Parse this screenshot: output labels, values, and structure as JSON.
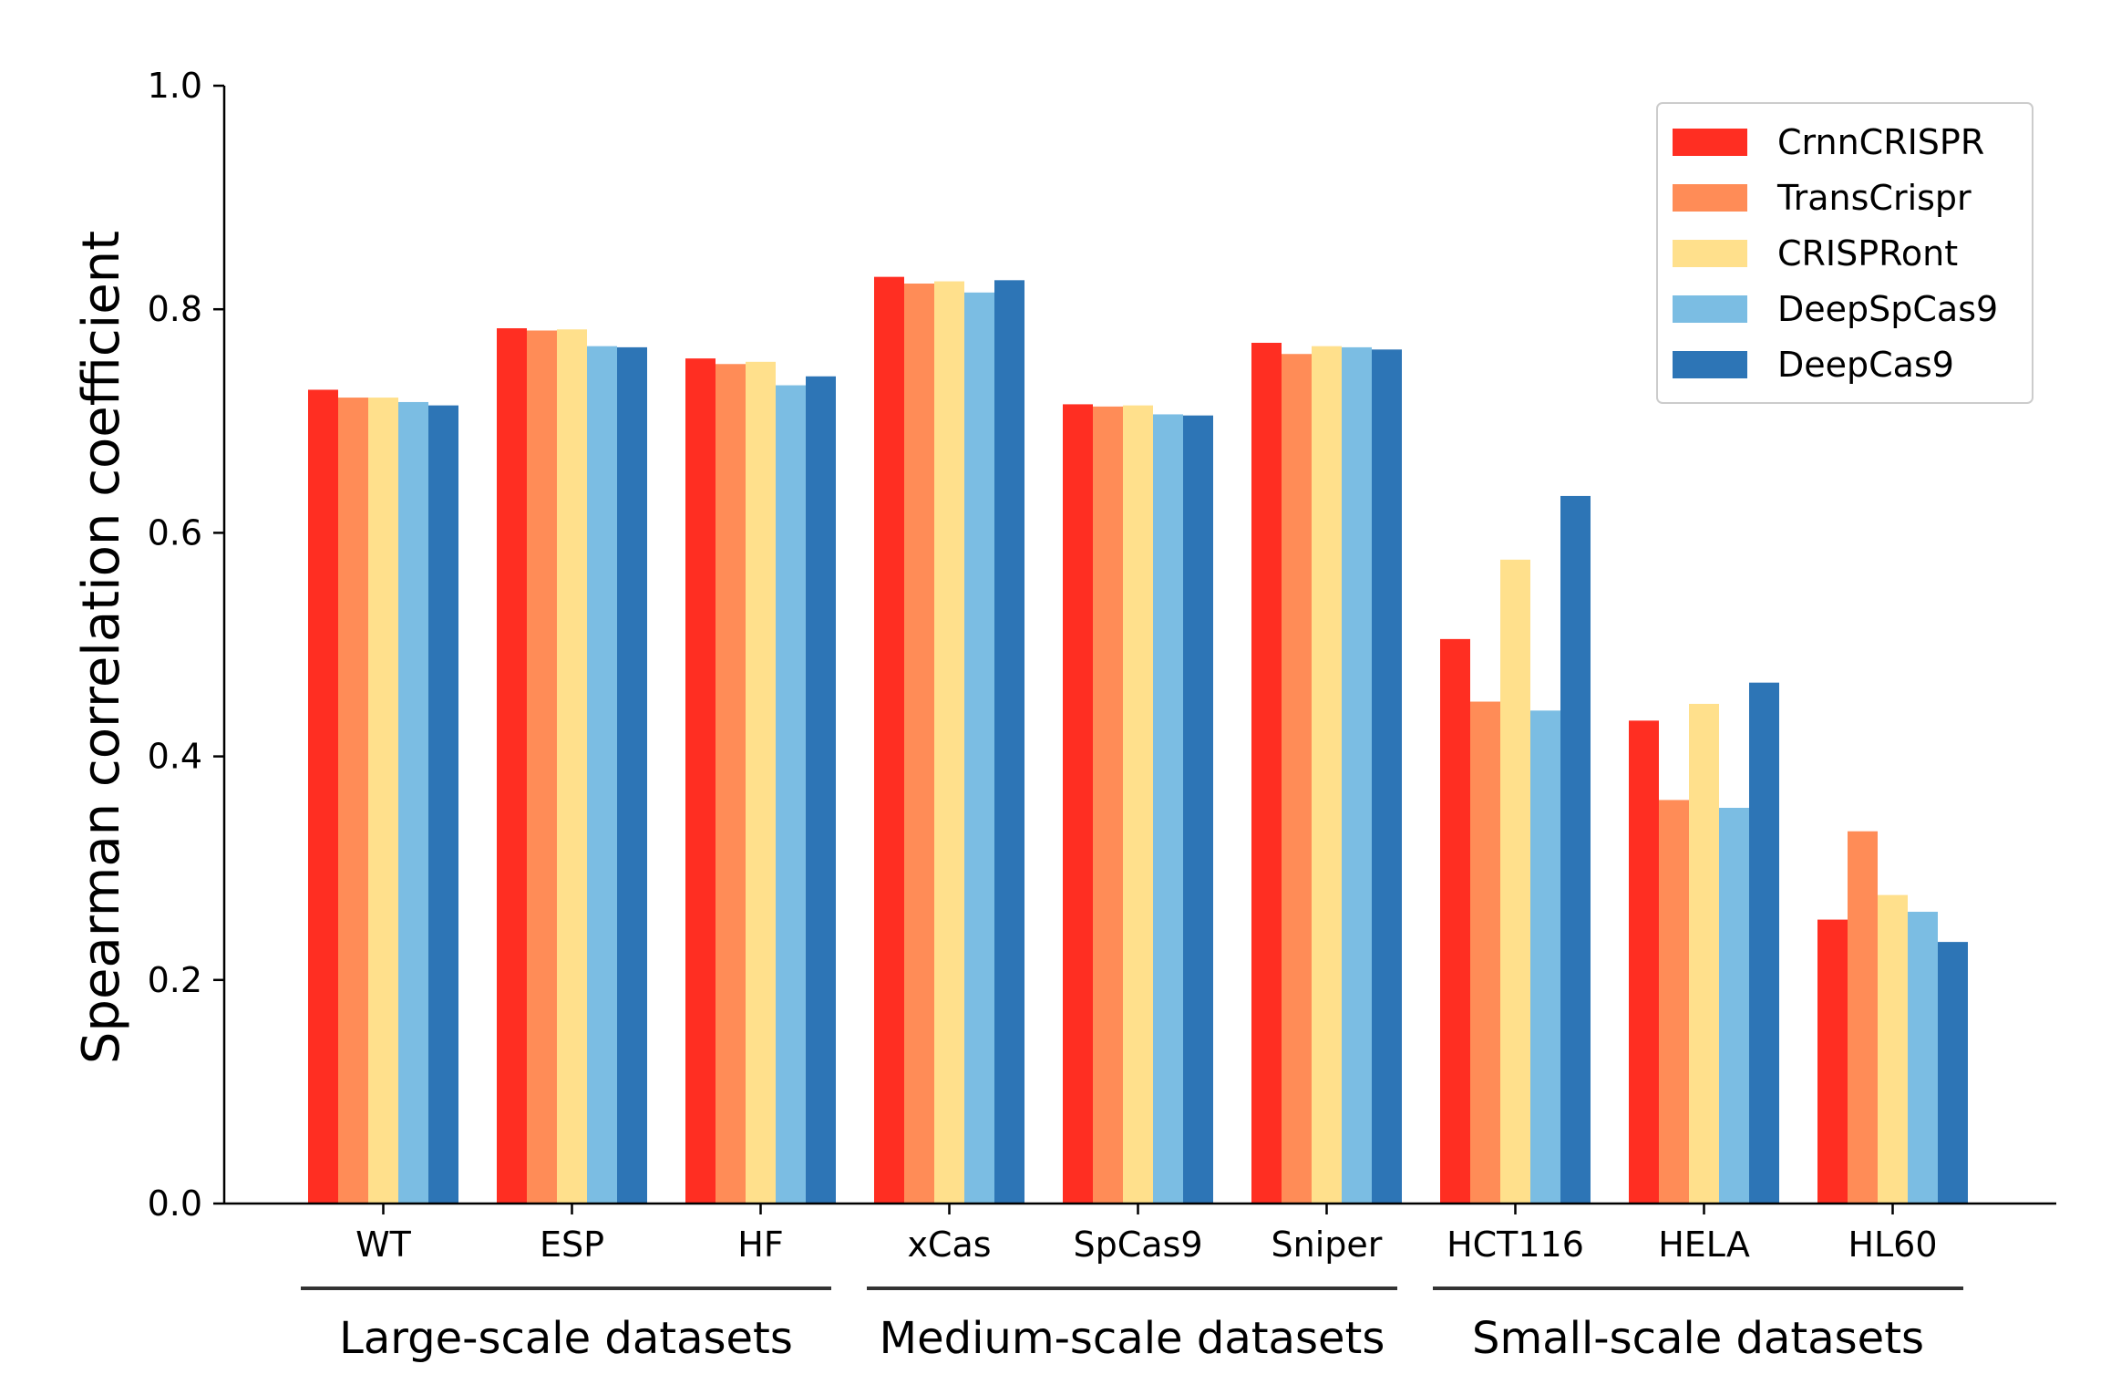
{
  "chart_data": {
    "type": "bar",
    "title": "",
    "xlabel": "",
    "ylabel": "Spearman correlation coefficient",
    "ylim": [
      0.0,
      1.0
    ],
    "yticks": [
      "0.0",
      "0.2",
      "0.4",
      "0.6",
      "0.8",
      "1.0"
    ],
    "grid": false,
    "legend_position": "top-right",
    "categories": [
      "WT",
      "ESP",
      "HF",
      "xCas",
      "SpCas9",
      "Sniper",
      "HCT116",
      "HELA",
      "HL60"
    ],
    "series": [
      {
        "name": "CrnnCRISPR",
        "color": "#ff2e22",
        "values": [
          0.728,
          0.783,
          0.756,
          0.829,
          0.715,
          0.77,
          0.505,
          0.432,
          0.254
        ]
      },
      {
        "name": "TransCrispr",
        "color": "#ff8c57",
        "values": [
          0.721,
          0.781,
          0.751,
          0.823,
          0.713,
          0.76,
          0.449,
          0.361,
          0.333
        ]
      },
      {
        "name": "CRISPRont",
        "color": "#ffe08c",
        "values": [
          0.721,
          0.782,
          0.753,
          0.825,
          0.714,
          0.767,
          0.576,
          0.447,
          0.276
        ]
      },
      {
        "name": "DeepSpCas9",
        "color": "#7bbde3",
        "values": [
          0.717,
          0.767,
          0.732,
          0.815,
          0.706,
          0.766,
          0.441,
          0.354,
          0.261
        ]
      },
      {
        "name": "DeepCas9",
        "color": "#2d75b6",
        "values": [
          0.714,
          0.766,
          0.74,
          0.826,
          0.705,
          0.764,
          0.633,
          0.466,
          0.234
        ]
      }
    ],
    "group_annotations": [
      {
        "label": "Large-scale datasets",
        "start": 0,
        "end": 2
      },
      {
        "label": "Medium-scale datasets",
        "start": 3,
        "end": 5
      },
      {
        "label": "Small-scale datasets",
        "start": 6,
        "end": 8
      }
    ]
  }
}
